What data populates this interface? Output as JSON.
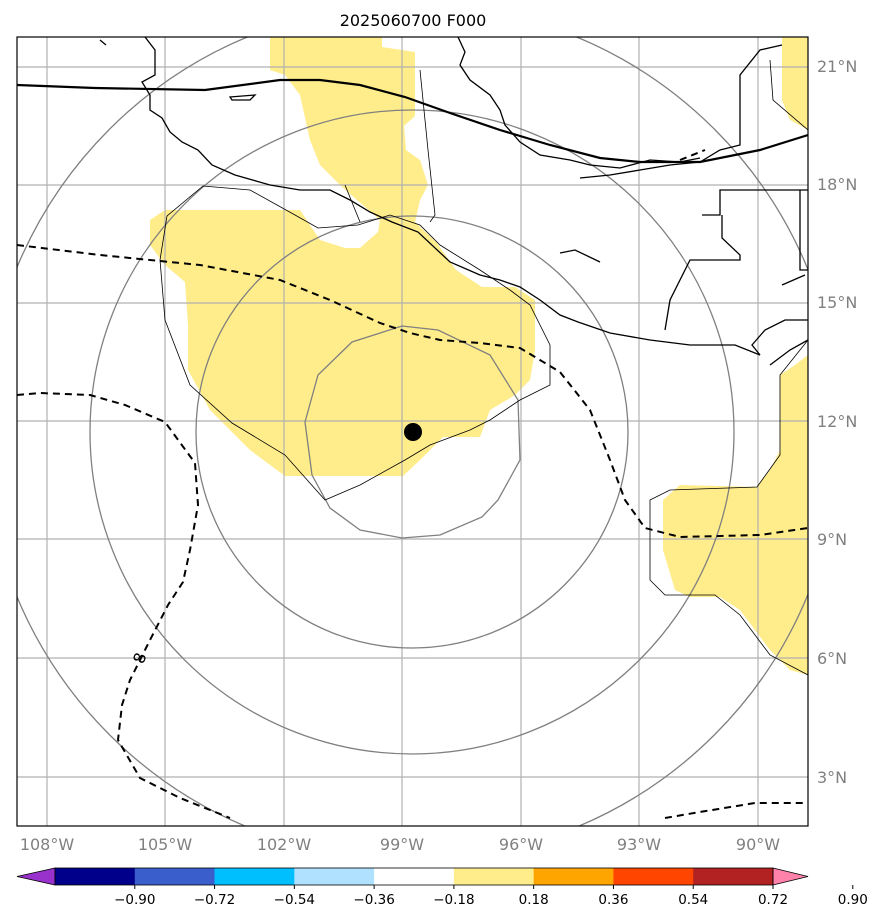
{
  "title": "2025060700 F000",
  "lat_labels": [
    "21°N",
    "18°N",
    "15°N",
    "12°N",
    "9°N",
    "6°N",
    "3°N"
  ],
  "lon_labels": [
    "108°W",
    "105°W",
    "102°W",
    "99°W",
    "96°W",
    "93°W",
    "90°W"
  ],
  "contour_label": "8",
  "colorbar": {
    "colors": [
      "#9932cc",
      "#00008b",
      "#3a5fcd",
      "#00bfff",
      "#b0e2ff",
      "#ffffff",
      "#ffec8b",
      "#ffa500",
      "#ff4500",
      "#b22222",
      "#ff82ab"
    ],
    "tick_labels": [
      "−0.90",
      "−0.72",
      "−0.54",
      "−0.36",
      "−0.18",
      "0.18",
      "0.36",
      "0.54",
      "0.72",
      "0.90"
    ]
  },
  "center_marker": {
    "lat": 11.7,
    "lon": -98.7
  }
}
